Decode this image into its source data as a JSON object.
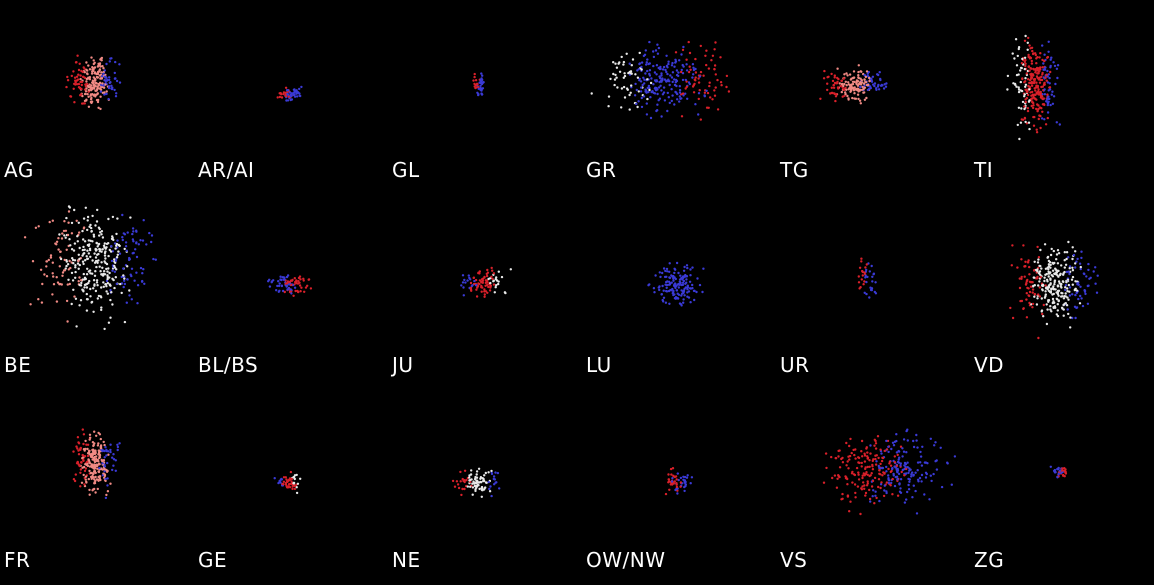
{
  "chart_data": [
    {
      "type": "scatter",
      "title": "AG",
      "colors": [
        "red",
        "salmon",
        "blue"
      ]
    },
    {
      "type": "scatter",
      "title": "AR/AI",
      "colors": [
        "red",
        "blue"
      ]
    },
    {
      "type": "scatter",
      "title": "GL",
      "colors": [
        "red",
        "blue"
      ]
    },
    {
      "type": "scatter",
      "title": "GR",
      "colors": [
        "white",
        "blue",
        "red"
      ]
    },
    {
      "type": "scatter",
      "title": "TG",
      "colors": [
        "red",
        "salmon",
        "blue"
      ]
    },
    {
      "type": "scatter",
      "title": "TI",
      "colors": [
        "white",
        "red",
        "blue"
      ]
    },
    {
      "type": "scatter",
      "title": "BE",
      "colors": [
        "salmon",
        "white",
        "blue"
      ]
    },
    {
      "type": "scatter",
      "title": "BL/BS",
      "colors": [
        "blue",
        "red"
      ]
    },
    {
      "type": "scatter",
      "title": "JU",
      "colors": [
        "blue",
        "red",
        "white"
      ]
    },
    {
      "type": "scatter",
      "title": "LU",
      "colors": [
        "blue"
      ]
    },
    {
      "type": "scatter",
      "title": "UR",
      "colors": [
        "red",
        "blue"
      ]
    },
    {
      "type": "scatter",
      "title": "VD",
      "colors": [
        "red",
        "white",
        "blue"
      ]
    },
    {
      "type": "scatter",
      "title": "FR",
      "colors": [
        "red",
        "salmon",
        "blue"
      ]
    },
    {
      "type": "scatter",
      "title": "GE",
      "colors": [
        "blue",
        "red",
        "white"
      ]
    },
    {
      "type": "scatter",
      "title": "NE",
      "colors": [
        "red",
        "white",
        "blue"
      ]
    },
    {
      "type": "scatter",
      "title": "OW/NW",
      "colors": [
        "red",
        "blue"
      ]
    },
    {
      "type": "scatter",
      "title": "VS",
      "colors": [
        "red",
        "blue"
      ]
    },
    {
      "type": "scatter",
      "title": "ZG",
      "colors": [
        "blue",
        "red"
      ]
    }
  ],
  "palette": {
    "background": "#000000",
    "label": "#ffffff",
    "red": "#d9202a",
    "salmon": "#f08a84",
    "white": "#e8e8e8",
    "blue": "#3a3ad6"
  }
}
